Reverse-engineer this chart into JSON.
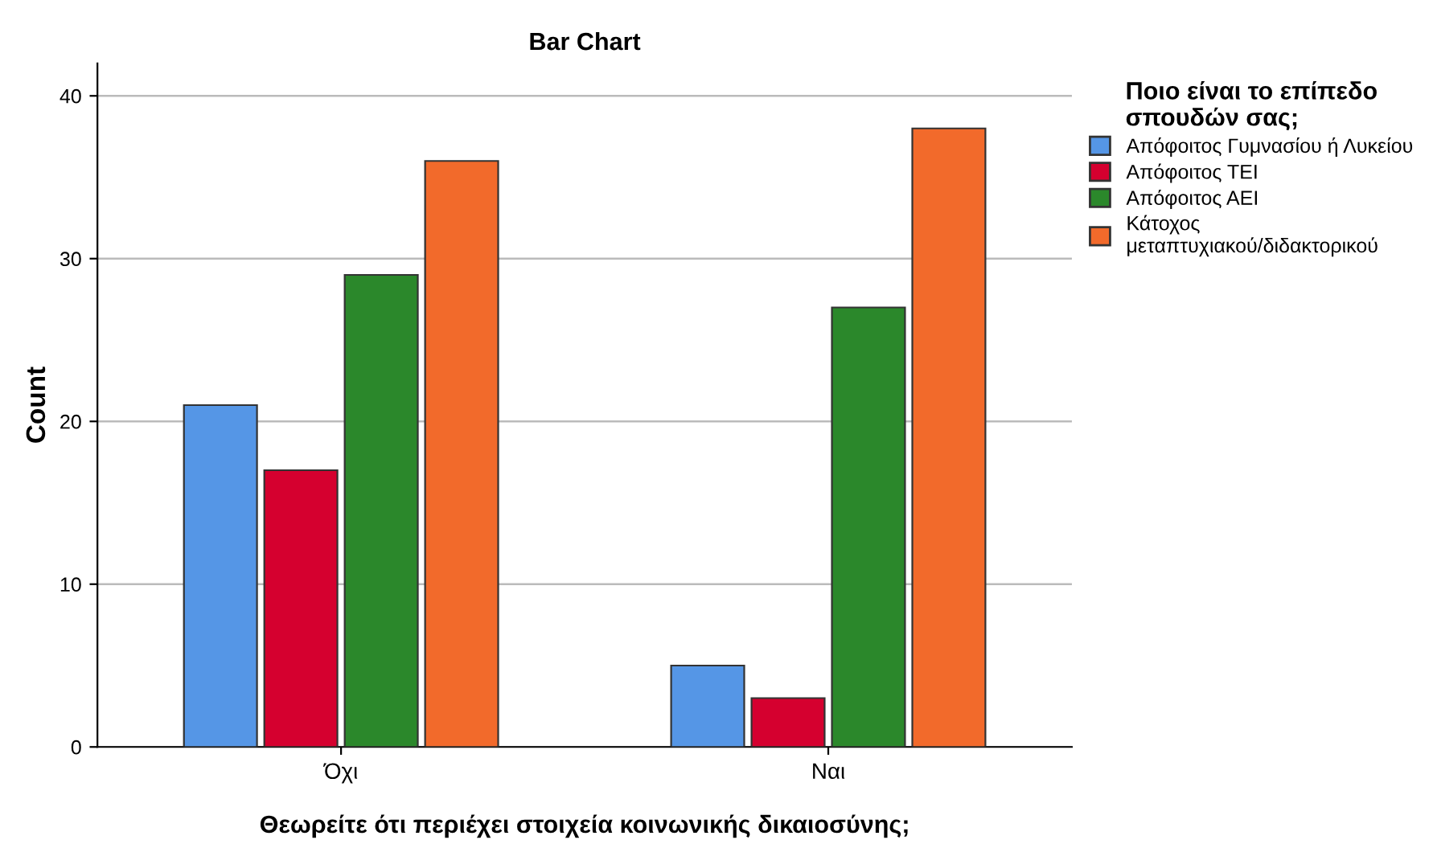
{
  "chart_data": {
    "type": "bar",
    "title": "Bar Chart",
    "xlabel": "Θεωρείτε ότι περιέχει στοιχεία κοινωνικής δικαιοσύνης;",
    "ylabel": "Count",
    "legend_title": "Ποιο είναι το επίπεδο\nσπουδών σας;",
    "categories": [
      "Όχι",
      "Ναι"
    ],
    "series": [
      {
        "name": "Απόφοιτος Γυμνασίου ή Λυκείου",
        "color": "#5596e6",
        "values": [
          21,
          5
        ]
      },
      {
        "name": "Απόφοιτος ΤΕΙ",
        "color": "#d5002f",
        "values": [
          17,
          3
        ]
      },
      {
        "name": "Απόφοιτος ΑΕΙ",
        "color": "#2b882b",
        "values": [
          29,
          27
        ]
      },
      {
        "name": "Κάτοχος\nμεταπτυχιακού/διδακτορικού",
        "color": "#f26a2b",
        "values": [
          36,
          38
        ]
      }
    ],
    "ylim": [
      0,
      42
    ],
    "yticks": [
      0,
      10,
      20,
      30,
      40
    ],
    "grid": "y",
    "legend": "top right"
  }
}
